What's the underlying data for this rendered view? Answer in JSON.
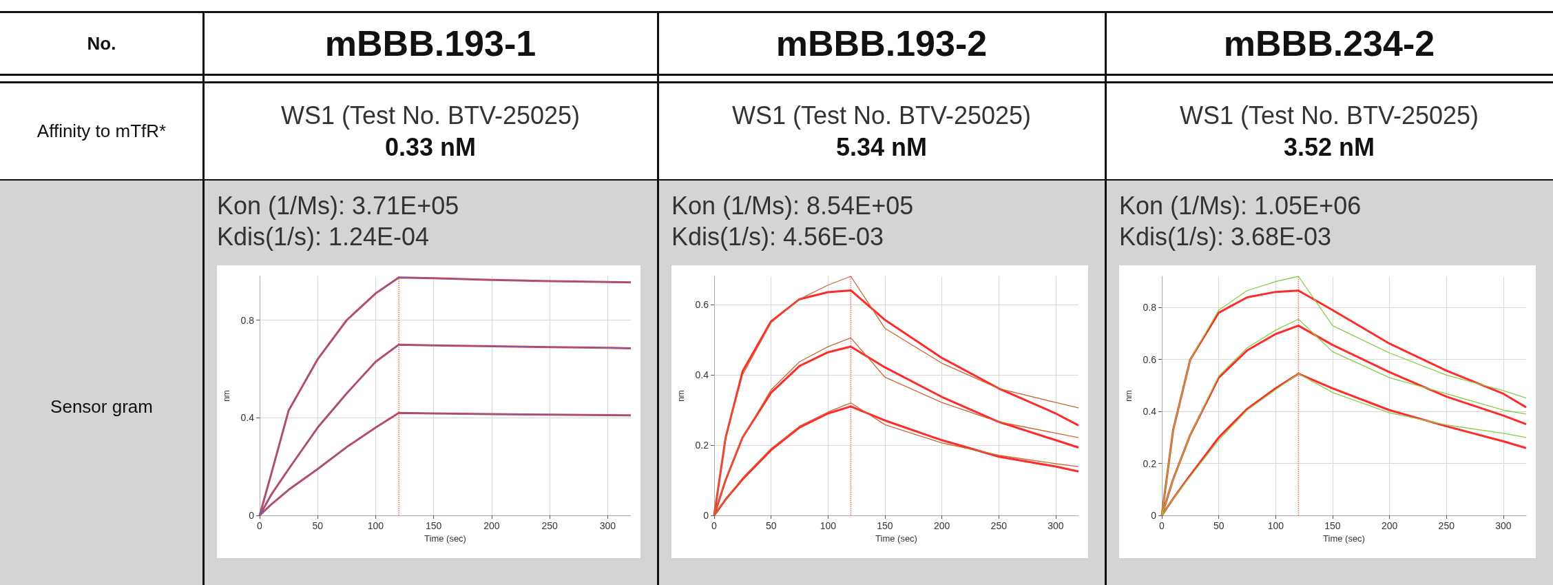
{
  "chart_data": [
    {
      "type": "other",
      "annotations": [
        "No.",
        "Affinity to mTfR*",
        "Sensor gram"
      ]
    },
    {
      "type": "line",
      "title": "mBBB.193-1",
      "subtitle": "WS1 (Test No. BTV-25025)",
      "annotations": [
        "0.33 nM",
        "Kon (1/Ms): 3.71E+05",
        "Kdis(1/s): 1.24E-04"
      ],
      "xlabel": "Time (sec)",
      "ylabel": "nm",
      "x": [
        0,
        10,
        25,
        50,
        75,
        100,
        120,
        150,
        200,
        250,
        300,
        320
      ],
      "xlim": [
        0,
        320
      ],
      "xticks": [
        0,
        50,
        100,
        150,
        200,
        250,
        300
      ],
      "ylim": [
        0,
        0.98
      ],
      "yticks": [
        0,
        0.4,
        0.8
      ],
      "grid": true,
      "marker": "none",
      "line_style": "solid",
      "ref_lines": [
        {
          "axis": "x",
          "value": 120,
          "color": "#ff6666",
          "line_style": "dotted"
        }
      ],
      "series": [
        {
          "color": "#4f6fc0",
          "values": [
            0,
            0.17,
            0.43,
            0.64,
            0.8,
            0.91,
            0.975,
            0.972,
            0.965,
            0.96,
            0.957,
            0.955
          ]
        },
        {
          "color": "#4f6fc0",
          "values": [
            0,
            0.085,
            0.19,
            0.36,
            0.5,
            0.63,
            0.7,
            0.697,
            0.693,
            0.69,
            0.687,
            0.685
          ]
        },
        {
          "color": "#4f6fc0",
          "values": [
            0,
            0.045,
            0.105,
            0.19,
            0.28,
            0.36,
            0.42,
            0.418,
            0.415,
            0.413,
            0.411,
            0.41
          ]
        },
        {
          "color": "#ff3333",
          "values": [
            0,
            0.17,
            0.43,
            0.64,
            0.8,
            0.91,
            0.975,
            0.972,
            0.965,
            0.96,
            0.957,
            0.955
          ]
        },
        {
          "color": "#ff3333",
          "values": [
            0,
            0.085,
            0.19,
            0.36,
            0.5,
            0.63,
            0.7,
            0.697,
            0.693,
            0.69,
            0.687,
            0.685
          ]
        },
        {
          "color": "#ff3333",
          "values": [
            0,
            0.045,
            0.105,
            0.19,
            0.28,
            0.36,
            0.42,
            0.418,
            0.415,
            0.413,
            0.411,
            0.41
          ]
        }
      ]
    },
    {
      "type": "line",
      "title": "mBBB.193-2",
      "subtitle": "WS1 (Test No. BTV-25025)",
      "annotations": [
        "5.34 nM",
        "Kon (1/Ms): 8.54E+05",
        "Kdis(1/s): 4.56E-03"
      ],
      "xlabel": "Time (sec)",
      "ylabel": "nm",
      "x": [
        0,
        10,
        25,
        50,
        75,
        100,
        120,
        150,
        200,
        250,
        300,
        320
      ],
      "xlim": [
        0,
        320
      ],
      "xticks": [
        0,
        50,
        100,
        150,
        200,
        250,
        300
      ],
      "ylim": [
        0,
        0.68
      ],
      "yticks": [
        0,
        0.2,
        0.4,
        0.6
      ],
      "grid": true,
      "marker": "none",
      "line_style": "solid",
      "ref_lines": [
        {
          "axis": "x",
          "value": 120,
          "color": "#ff6666",
          "line_style": "dotted"
        }
      ],
      "series": [
        {
          "color": "#cc6633",
          "values": [
            0,
            0.22,
            0.4,
            0.548,
            0.615,
            0.655,
            0.68,
            0.532,
            0.433,
            0.361,
            0.321,
            0.306
          ]
        },
        {
          "color": "#cc6633",
          "values": [
            0,
            0.1,
            0.222,
            0.357,
            0.437,
            0.48,
            0.505,
            0.393,
            0.321,
            0.266,
            0.234,
            0.221
          ]
        },
        {
          "color": "#cc6633",
          "values": [
            0,
            0.045,
            0.107,
            0.19,
            0.254,
            0.294,
            0.32,
            0.258,
            0.206,
            0.171,
            0.147,
            0.139
          ]
        },
        {
          "color": "#ff2a2a",
          "values": [
            0,
            0.22,
            0.41,
            0.552,
            0.615,
            0.635,
            0.64,
            0.556,
            0.448,
            0.361,
            0.29,
            0.256
          ]
        },
        {
          "color": "#ff2a2a",
          "values": [
            0,
            0.1,
            0.222,
            0.349,
            0.425,
            0.464,
            0.48,
            0.421,
            0.337,
            0.266,
            0.214,
            0.193
          ]
        },
        {
          "color": "#ff2a2a",
          "values": [
            0,
            0.045,
            0.103,
            0.186,
            0.25,
            0.29,
            0.31,
            0.27,
            0.214,
            0.167,
            0.139,
            0.125
          ]
        }
      ]
    },
    {
      "type": "line",
      "title": "mBBB.234-2",
      "subtitle": "WS1 (Test No. BTV-25025)",
      "annotations": [
        "3.52 nM",
        "Kon (1/Ms): 1.05E+06",
        "Kdis(1/s): 3.68E-03"
      ],
      "xlabel": "Time (sec)",
      "ylabel": "nm",
      "x": [
        0,
        10,
        25,
        50,
        75,
        100,
        120,
        150,
        200,
        250,
        300,
        320
      ],
      "xlim": [
        0,
        320
      ],
      "xticks": [
        0,
        50,
        100,
        150,
        200,
        250,
        300
      ],
      "ylim": [
        0,
        0.92
      ],
      "yticks": [
        0,
        0.2,
        0.4,
        0.6,
        0.8
      ],
      "grid": true,
      "marker": "none",
      "line_style": "solid",
      "ref_lines": [
        {
          "axis": "x",
          "value": 120,
          "color": "#ff6666",
          "line_style": "dotted"
        }
      ],
      "series": [
        {
          "color": "#88cc44",
          "values": [
            0,
            0.33,
            0.6,
            0.79,
            0.865,
            0.9,
            0.92,
            0.73,
            0.625,
            0.54,
            0.48,
            0.452
          ]
        },
        {
          "color": "#88cc44",
          "values": [
            0,
            0.14,
            0.31,
            0.536,
            0.645,
            0.713,
            0.755,
            0.63,
            0.53,
            0.468,
            0.405,
            0.39
          ]
        },
        {
          "color": "#88cc44",
          "values": [
            0,
            0.065,
            0.15,
            0.29,
            0.405,
            0.484,
            0.545,
            0.473,
            0.395,
            0.348,
            0.316,
            0.3
          ]
        },
        {
          "color": "#ff2a2a",
          "values": [
            0,
            0.33,
            0.6,
            0.78,
            0.839,
            0.86,
            0.865,
            0.79,
            0.661,
            0.557,
            0.468,
            0.416
          ]
        },
        {
          "color": "#ff2a2a",
          "values": [
            0,
            0.14,
            0.31,
            0.53,
            0.635,
            0.698,
            0.73,
            0.656,
            0.551,
            0.457,
            0.384,
            0.351
          ]
        },
        {
          "color": "#ff2a2a",
          "values": [
            0,
            0.065,
            0.155,
            0.3,
            0.41,
            0.489,
            0.545,
            0.489,
            0.405,
            0.343,
            0.285,
            0.259
          ]
        }
      ]
    }
  ]
}
